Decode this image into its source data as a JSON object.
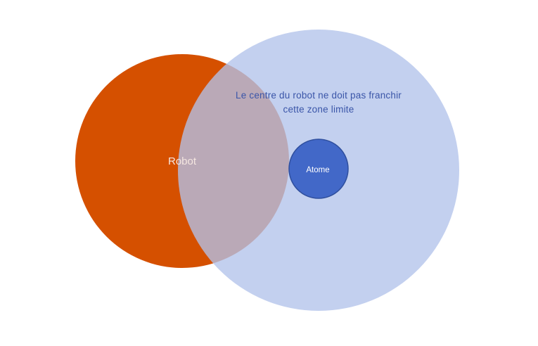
{
  "colors": {
    "robot_fill": "#d55000",
    "zone_fill": "#b2c3ea",
    "atom_fill": "#4268c8",
    "atom_stroke": "#2f4f9e",
    "zone_text": "#3a55a8",
    "robot_text": "#f4e6e0",
    "atom_text": "#ffffff"
  },
  "robot": {
    "label": "Robot"
  },
  "zone": {
    "label_line1": "Le centre du robot ne doit pas franchir",
    "label_line2": "cette zone limite"
  },
  "atom": {
    "label": "Atome"
  }
}
